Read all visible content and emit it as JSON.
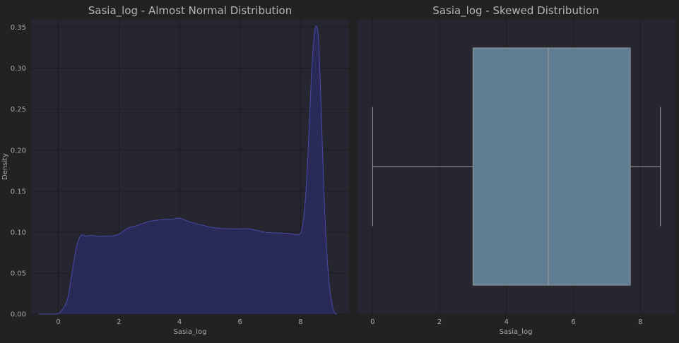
{
  "colors": {
    "figure_bg": "#222222",
    "axes_bg": "#262631",
    "kde_fill": "#2a2a58",
    "kde_line": "#4a4aa8",
    "box_fill": "#5f7d91",
    "box_line": "#a0a0a0"
  },
  "chart_data": [
    {
      "type": "area",
      "title": "Sasia_log - Almost Normal Distribution",
      "xlabel": "Sasia_log",
      "ylabel": "Density",
      "xlim": [
        -0.9,
        9.6
      ],
      "ylim": [
        0,
        0.36
      ],
      "xticks": [
        "0",
        "2",
        "4",
        "6",
        "8"
      ],
      "xtick_values": [
        0,
        2,
        4,
        6,
        8
      ],
      "yticks": [
        "0.00",
        "0.05",
        "0.10",
        "0.15",
        "0.20",
        "0.25",
        "0.30",
        "0.35"
      ],
      "ytick_values": [
        0,
        0.05,
        0.1,
        0.15,
        0.2,
        0.25,
        0.3,
        0.35
      ],
      "grid": true,
      "x": [
        -0.65,
        -0.1,
        0.1,
        0.3,
        0.45,
        0.6,
        0.75,
        0.9,
        1.1,
        1.3,
        1.6,
        1.9,
        2.1,
        2.3,
        2.6,
        3.0,
        3.4,
        3.8,
        4.0,
        4.3,
        4.7,
        5.2,
        5.8,
        6.3,
        6.8,
        7.3,
        7.7,
        7.95,
        8.05,
        8.15,
        8.25,
        8.35,
        8.45,
        8.53,
        8.6,
        8.68,
        8.76,
        8.85,
        8.95,
        9.05,
        9.12,
        9.2
      ],
      "y": [
        0.0,
        0.0,
        0.004,
        0.018,
        0.05,
        0.082,
        0.096,
        0.095,
        0.096,
        0.095,
        0.095,
        0.096,
        0.1,
        0.105,
        0.108,
        0.113,
        0.115,
        0.116,
        0.117,
        0.113,
        0.109,
        0.105,
        0.104,
        0.104,
        0.1,
        0.099,
        0.098,
        0.097,
        0.105,
        0.135,
        0.2,
        0.285,
        0.34,
        0.351,
        0.33,
        0.25,
        0.16,
        0.085,
        0.035,
        0.01,
        0.002,
        0.0
      ]
    },
    {
      "type": "box",
      "title": "Sasia_log - Skewed Distribution",
      "xlabel": "Sasia_log",
      "xlim": [
        -0.45,
        9.05
      ],
      "xticks": [
        "0",
        "2",
        "4",
        "6",
        "8"
      ],
      "xtick_values": [
        0,
        2,
        4,
        6,
        8
      ],
      "grid": true,
      "stats": {
        "min": 0.0,
        "q1": 3.0,
        "median": 5.25,
        "q3": 7.7,
        "max": 8.6
      }
    }
  ]
}
